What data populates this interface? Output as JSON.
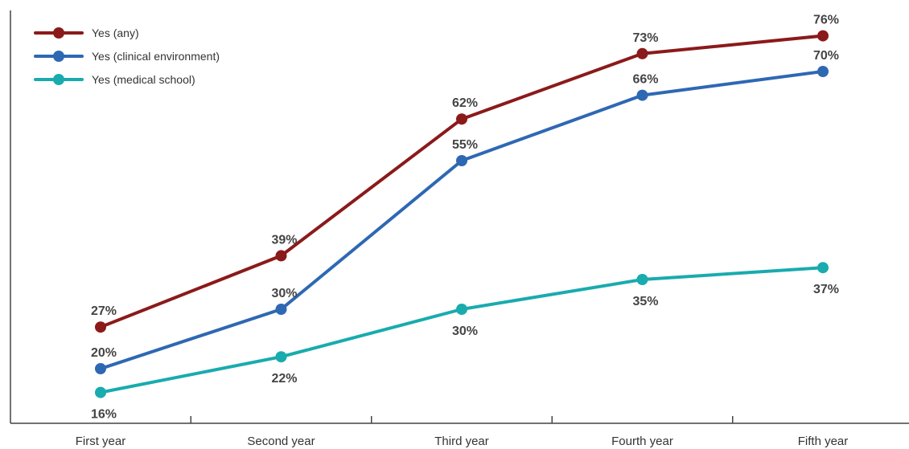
{
  "chart_data": {
    "type": "line",
    "title": "",
    "xlabel": "",
    "ylabel": "",
    "categories": [
      "First year",
      "Second year",
      "Third year",
      "Fourth year",
      "Fifth year"
    ],
    "ylim": [
      0,
      84
    ],
    "grid": false,
    "legend_position": "top-left",
    "series": [
      {
        "name": "Yes (any)",
        "color": "#8b1a1a",
        "values": [
          27,
          39,
          62,
          73,
          76
        ],
        "labels": [
          "27%",
          "39%",
          "62%",
          "73%",
          "76%"
        ]
      },
      {
        "name": "Yes (clinical environment)",
        "color": "#2e68b3",
        "values": [
          20,
          30,
          55,
          66,
          70
        ],
        "labels": [
          "20%",
          "30%",
          "55%",
          "66%",
          "70%"
        ]
      },
      {
        "name": "Yes (medical school)",
        "color": "#19abae",
        "values": [
          16,
          22,
          30,
          35,
          37
        ],
        "labels": [
          "16%",
          "22%",
          "30%",
          "35%",
          "37%"
        ]
      }
    ]
  }
}
